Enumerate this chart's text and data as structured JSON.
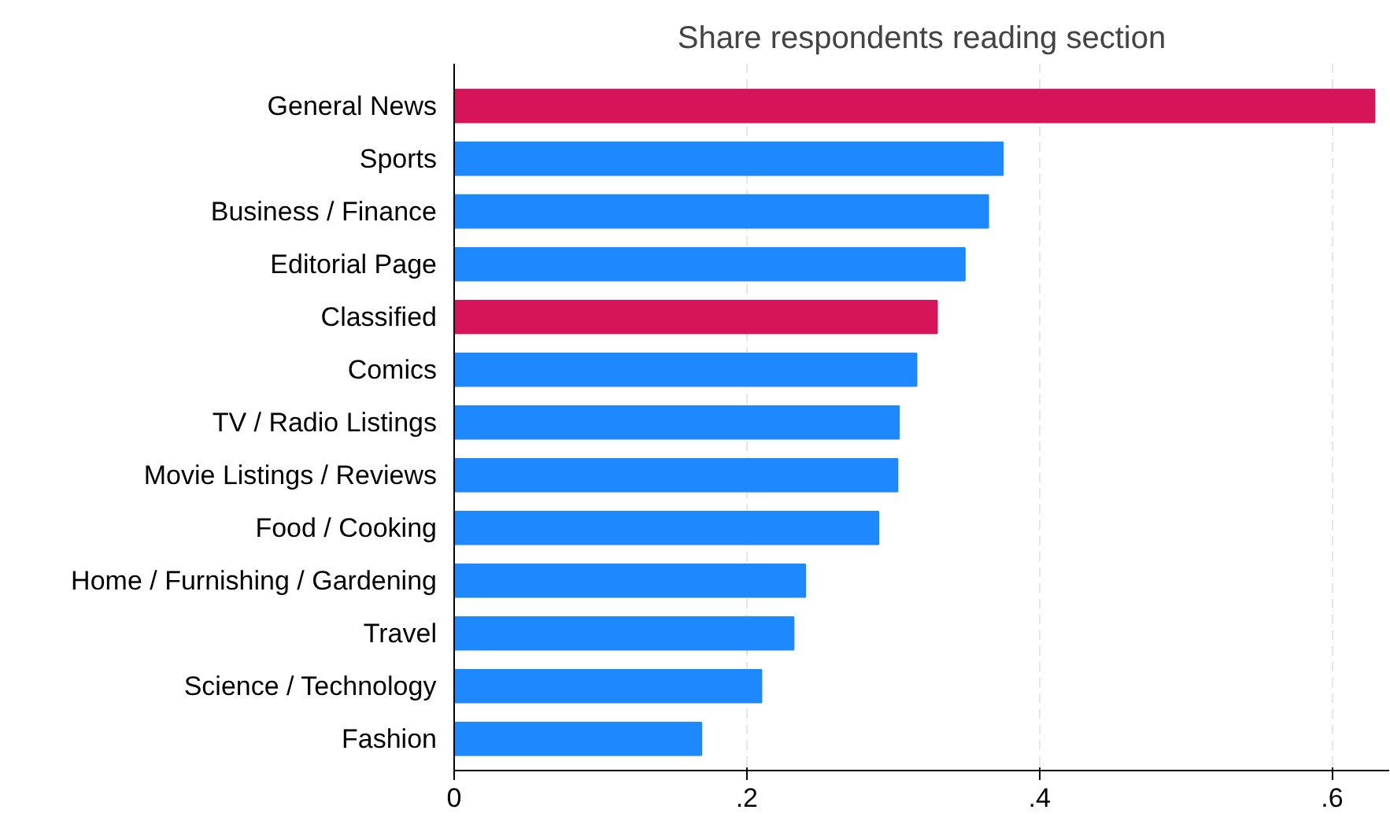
{
  "chart_data": {
    "type": "bar",
    "orientation": "horizontal",
    "title": "Share respondents reading section",
    "categories": [
      "General News",
      "Sports",
      "Business / Finance",
      "Editorial Page",
      "Classified",
      "Comics",
      "TV / Radio Listings",
      "Movie Listings / Reviews",
      "Food / Cooking",
      "Home / Furnishing / Gardening",
      "Travel",
      "Science / Technology",
      "Fashion"
    ],
    "values": [
      0.629,
      0.375,
      0.365,
      0.349,
      0.33,
      0.316,
      0.304,
      0.303,
      0.29,
      0.24,
      0.232,
      0.21,
      0.169
    ],
    "colors": [
      "#d5145a",
      "#1e88ff",
      "#1e88ff",
      "#1e88ff",
      "#d5145a",
      "#1e88ff",
      "#1e88ff",
      "#1e88ff",
      "#1e88ff",
      "#1e88ff",
      "#1e88ff",
      "#1e88ff",
      "#1e88ff"
    ],
    "xlim": [
      0,
      0.639
    ],
    "xticks": [
      0,
      {
        "value": 0.2,
        "label": ".2"
      },
      {
        "value": 0.4,
        "label": ".4"
      },
      {
        "value": 0.6,
        "label": ".6"
      }
    ],
    "grid": "x"
  }
}
